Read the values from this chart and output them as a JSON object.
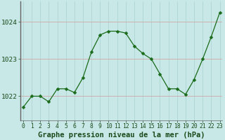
{
  "hours": [
    0,
    1,
    2,
    3,
    4,
    5,
    6,
    7,
    8,
    9,
    10,
    11,
    12,
    13,
    14,
    15,
    16,
    17,
    18,
    19,
    20,
    21,
    22,
    23
  ],
  "pressure": [
    1021.7,
    1022.0,
    1022.0,
    1021.85,
    1022.2,
    1022.2,
    1022.1,
    1022.5,
    1023.2,
    1023.65,
    1023.75,
    1023.75,
    1023.7,
    1023.35,
    1023.15,
    1023.0,
    1022.6,
    1022.2,
    1022.2,
    1022.05,
    1022.45,
    1023.0,
    1023.6,
    1024.25
  ],
  "line_color": "#1a6b1a",
  "marker": "D",
  "marker_size": 2.5,
  "bg_color": "#c8e8e8",
  "grid_color_v": "#a8d0d0",
  "grid_color_h": "#d0a8a8",
  "yticks": [
    1022,
    1023,
    1024
  ],
  "xticks": [
    0,
    1,
    2,
    3,
    4,
    5,
    6,
    7,
    8,
    9,
    10,
    11,
    12,
    13,
    14,
    15,
    16,
    17,
    18,
    19,
    20,
    21,
    22,
    23
  ],
  "xlabel": "Graphe pression niveau de la mer (hPa)",
  "ylim": [
    1021.35,
    1024.55
  ],
  "xlim": [
    -0.3,
    23.3
  ],
  "tick_fontsize": 5.8,
  "label_fontsize": 7.5,
  "text_color": "#1a4a1a",
  "spine_color": "#666666",
  "bottom_bg": "#3a7a3a"
}
